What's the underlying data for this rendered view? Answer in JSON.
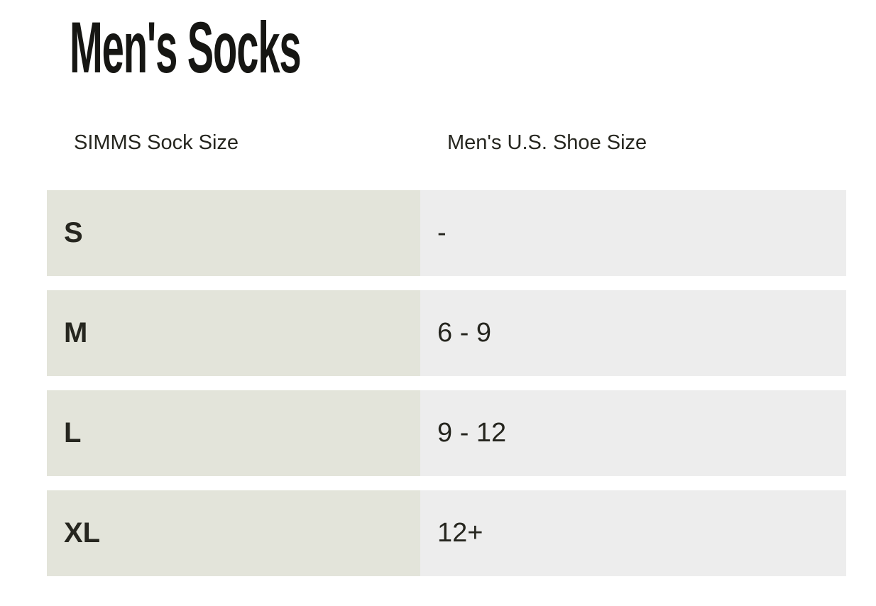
{
  "page": {
    "title": "Men's Socks"
  },
  "colors": {
    "page_bg": "#ffffff",
    "title_text": "#161613",
    "header_text": "#26261f",
    "cell_text": "#26261f",
    "size_cell_bg": "#e3e4da",
    "shoe_cell_bg": "#ededed"
  },
  "size_chart": {
    "columns": [
      {
        "id": "sock_size",
        "label": "SIMMS Sock Size"
      },
      {
        "id": "shoe_size",
        "label": "Men's U.S. Shoe Size"
      }
    ],
    "rows": [
      {
        "sock_size": "S",
        "shoe_size": "-"
      },
      {
        "sock_size": "M",
        "shoe_size": "6 - 9"
      },
      {
        "sock_size": "L",
        "shoe_size": "9 - 12"
      },
      {
        "sock_size": "XL",
        "shoe_size": "12+"
      }
    ]
  }
}
